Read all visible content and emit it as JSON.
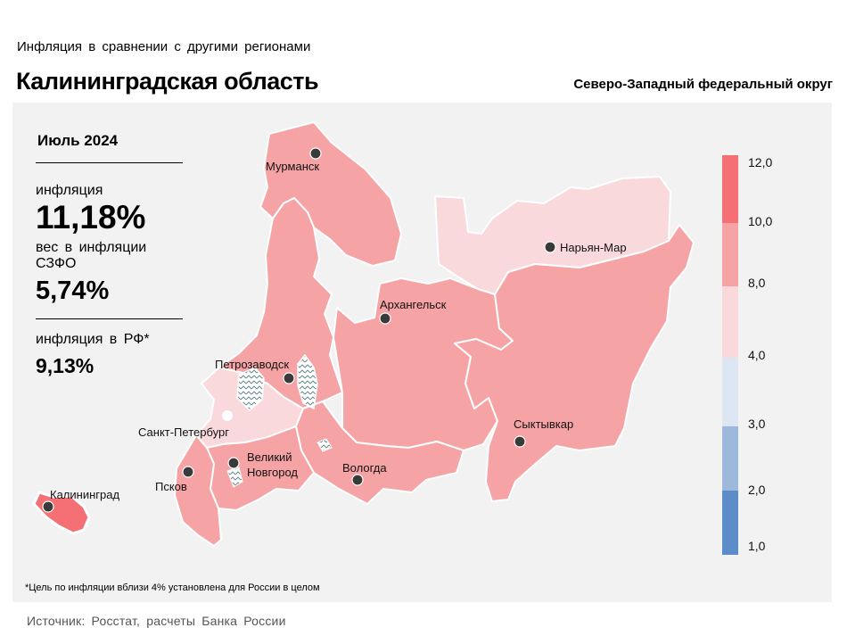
{
  "header": {
    "supertitle": "Инфляция в сравнении с другими регионами",
    "title": "Калининградская область",
    "district": "Северо-Западный федеральный округ"
  },
  "stats": {
    "period": "Июль 2024",
    "inflation_label": "инфляция",
    "inflation_value": "11,18%",
    "weight_label": "вес в инфляции СЗФО",
    "weight_value": "5,74%",
    "russia_label": "инфляция в РФ*",
    "russia_value": "9,13%"
  },
  "cities": {
    "murmansk": "Мурманск",
    "naryan_mar": "Нарьян-Мар",
    "arkhangelsk": "Архангельск",
    "petrozavodsk": "Петрозаводск",
    "spb": "Санкт-Петербург",
    "velikiy_novgorod_1": "Великий",
    "velikiy_novgorod_2": "Новгород",
    "pskov": "Псков",
    "vologda": "Вологда",
    "syktyvkar": "Сыктывкар",
    "kaliningrad": "Калининград"
  },
  "legend": {
    "ticks": [
      "12,0",
      "10,0",
      "8,0",
      "4,0",
      "3,0",
      "2,0",
      "1,0"
    ],
    "colors": [
      "#f47074",
      "#f6a3a6",
      "#fad9dc",
      "#dde7f4",
      "#9cb8da",
      "#5d8dc8"
    ]
  },
  "region_colors": {
    "above_10": "#f47074",
    "from_8_to_10": "#f6a3a6",
    "from_4_to_8": "#fad9dc"
  },
  "footnote": "*Цель по инфляции вблизи 4% установлена для России в целом",
  "source": "Источник: Росстат, расчеты Банка России"
}
